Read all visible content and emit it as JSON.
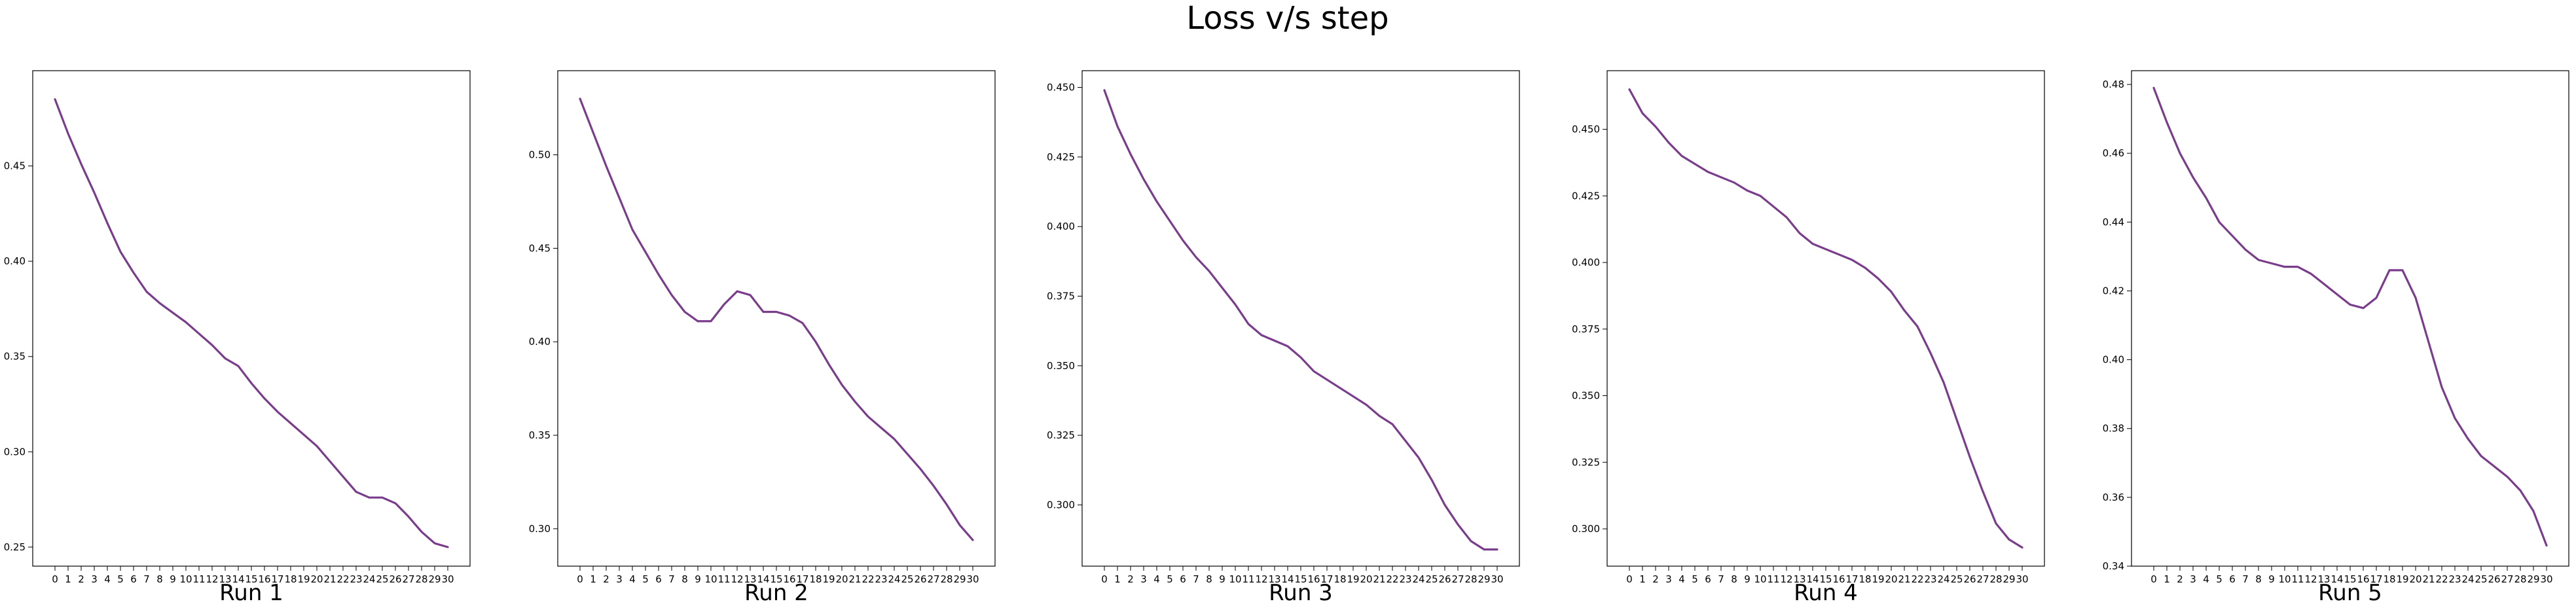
{
  "figure": {
    "title": "Loss v/s step",
    "line_color": "#7a3d8c"
  },
  "chart_data": [
    {
      "type": "line",
      "title": "Run 1",
      "xlabel": "",
      "ylabel": "",
      "x": [
        0,
        1,
        2,
        3,
        4,
        5,
        6,
        7,
        8,
        9,
        10,
        11,
        12,
        13,
        14,
        15,
        16,
        17,
        18,
        19,
        20,
        21,
        22,
        23,
        24,
        25,
        26,
        27,
        28,
        29,
        30
      ],
      "values": [
        0.485,
        0.467,
        0.451,
        0.436,
        0.42,
        0.405,
        0.394,
        0.384,
        0.378,
        0.373,
        0.368,
        0.362,
        0.356,
        0.349,
        0.345,
        0.336,
        0.328,
        0.321,
        0.315,
        0.309,
        0.303,
        0.295,
        0.287,
        0.279,
        0.276,
        0.276,
        0.273,
        0.266,
        0.258,
        0.252,
        0.25
      ],
      "ylim": [
        0.24,
        0.5
      ],
      "yticks": [
        0.25,
        0.3,
        0.35,
        0.4,
        0.45
      ],
      "ytick_labels": [
        "0.25",
        "0.30",
        "0.35",
        "0.40",
        "0.45"
      ],
      "grid": false
    },
    {
      "type": "line",
      "title": "Run 2",
      "xlabel": "",
      "ylabel": "",
      "x": [
        0,
        1,
        2,
        3,
        4,
        5,
        6,
        7,
        8,
        9,
        10,
        11,
        12,
        13,
        14,
        15,
        16,
        17,
        18,
        19,
        20,
        21,
        22,
        23,
        24,
        25,
        26,
        27,
        28,
        29,
        30
      ],
      "values": [
        0.53,
        0.512,
        0.494,
        0.477,
        0.46,
        0.448,
        0.436,
        0.425,
        0.416,
        0.411,
        0.411,
        0.42,
        0.427,
        0.425,
        0.416,
        0.416,
        0.414,
        0.41,
        0.4,
        0.388,
        0.377,
        0.368,
        0.36,
        0.354,
        0.348,
        0.34,
        0.332,
        0.323,
        0.313,
        0.302,
        0.294
      ],
      "ylim": [
        0.28,
        0.545
      ],
      "yticks": [
        0.3,
        0.35,
        0.4,
        0.45,
        0.5
      ],
      "ytick_labels": [
        "0.30",
        "0.35",
        "0.40",
        "0.45",
        "0.50"
      ],
      "grid": false
    },
    {
      "type": "line",
      "title": "Run 3",
      "xlabel": "",
      "ylabel": "",
      "x": [
        0,
        1,
        2,
        3,
        4,
        5,
        6,
        7,
        8,
        9,
        10,
        11,
        12,
        13,
        14,
        15,
        16,
        17,
        18,
        19,
        20,
        21,
        22,
        23,
        24,
        25,
        26,
        27,
        28,
        29,
        30
      ],
      "values": [
        0.449,
        0.436,
        0.426,
        0.417,
        0.409,
        0.402,
        0.395,
        0.389,
        0.384,
        0.378,
        0.372,
        0.365,
        0.361,
        0.359,
        0.357,
        0.353,
        0.348,
        0.345,
        0.342,
        0.339,
        0.336,
        0.332,
        0.329,
        0.323,
        0.317,
        0.309,
        0.3,
        0.293,
        0.287,
        0.284,
        0.284
      ],
      "ylim": [
        0.278,
        0.456
      ],
      "yticks": [
        0.3,
        0.325,
        0.35,
        0.375,
        0.4,
        0.425,
        0.45
      ],
      "ytick_labels": [
        "0.300",
        "0.325",
        "0.350",
        "0.375",
        "0.400",
        "0.425",
        "0.450"
      ],
      "grid": false
    },
    {
      "type": "line",
      "title": "Run 4",
      "xlabel": "",
      "ylabel": "",
      "x": [
        0,
        1,
        2,
        3,
        4,
        5,
        6,
        7,
        8,
        9,
        10,
        11,
        12,
        13,
        14,
        15,
        16,
        17,
        18,
        19,
        20,
        21,
        22,
        23,
        24,
        25,
        26,
        27,
        28,
        29,
        30
      ],
      "values": [
        0.465,
        0.456,
        0.451,
        0.445,
        0.44,
        0.437,
        0.434,
        0.432,
        0.43,
        0.427,
        0.425,
        0.421,
        0.417,
        0.411,
        0.407,
        0.405,
        0.403,
        0.401,
        0.398,
        0.394,
        0.389,
        0.382,
        0.376,
        0.366,
        0.355,
        0.341,
        0.327,
        0.314,
        0.302,
        0.296,
        0.293
      ],
      "ylim": [
        0.286,
        0.472
      ],
      "yticks": [
        0.3,
        0.325,
        0.35,
        0.375,
        0.4,
        0.425,
        0.45
      ],
      "ytick_labels": [
        "0.300",
        "0.325",
        "0.350",
        "0.375",
        "0.400",
        "0.425",
        "0.450"
      ],
      "grid": false
    },
    {
      "type": "line",
      "title": "Run 5",
      "xlabel": "",
      "ylabel": "",
      "x": [
        0,
        1,
        2,
        3,
        4,
        5,
        6,
        7,
        8,
        9,
        10,
        11,
        12,
        13,
        14,
        15,
        16,
        17,
        18,
        19,
        20,
        21,
        22,
        23,
        24,
        25,
        26,
        27,
        28,
        29,
        30
      ],
      "values": [
        0.479,
        0.469,
        0.46,
        0.453,
        0.447,
        0.44,
        0.436,
        0.432,
        0.429,
        0.428,
        0.427,
        0.427,
        0.425,
        0.422,
        0.419,
        0.416,
        0.415,
        0.418,
        0.426,
        0.426,
        0.418,
        0.405,
        0.392,
        0.383,
        0.377,
        0.372,
        0.369,
        0.366,
        0.362,
        0.356,
        0.346
      ],
      "ylim": [
        0.34,
        0.484
      ],
      "yticks": [
        0.34,
        0.36,
        0.38,
        0.4,
        0.42,
        0.44,
        0.46,
        0.48
      ],
      "ytick_labels": [
        "0.34",
        "0.36",
        "0.38",
        "0.40",
        "0.42",
        "0.44",
        "0.46",
        "0.48"
      ],
      "grid": false
    }
  ]
}
